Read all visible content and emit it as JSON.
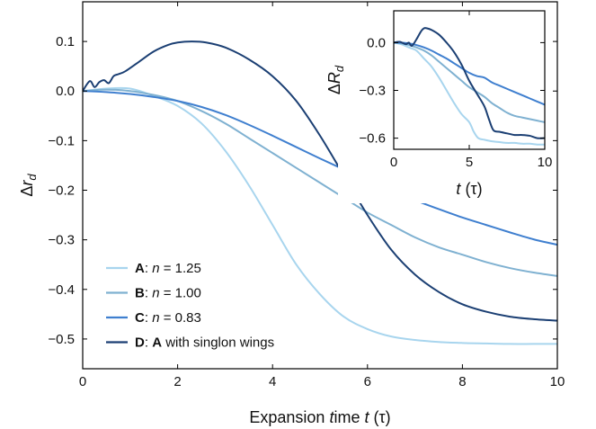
{
  "chart_data": [
    {
      "type": "line",
      "xlabel": "Expansion time t (τ)",
      "ylabel": "Δr_d",
      "xlim": [
        0,
        10
      ],
      "ylim": [
        -0.56,
        0.18
      ],
      "xticks": [
        0,
        2,
        4,
        6,
        8,
        10
      ],
      "yticks": [
        0.1,
        0.0,
        -0.1,
        -0.2,
        -0.3,
        -0.4,
        -0.5
      ],
      "xtick_labels": [
        "0",
        "2",
        "4",
        "6",
        "8",
        "10"
      ],
      "ytick_labels": [
        "0.1",
        "0.0",
        "−0.1",
        "−0.2",
        "−0.3",
        "−0.4",
        "−0.5"
      ],
      "grid": false,
      "legend_position": "bottom-left",
      "series": [
        {
          "name": "A: n = 1.25",
          "legend_bold": "A",
          "legend_rest": ": n = 1.25",
          "color": "#a8d5ee",
          "x": [
            0,
            0.5,
            1,
            1.5,
            2,
            2.5,
            3,
            3.5,
            4,
            4.5,
            5,
            5.5,
            6,
            6.5,
            7,
            7.5,
            8,
            8.5,
            9,
            9.5,
            10
          ],
          "y": [
            0.0,
            0.005,
            0.005,
            -0.01,
            -0.03,
            -0.065,
            -0.12,
            -0.19,
            -0.27,
            -0.35,
            -0.41,
            -0.455,
            -0.48,
            -0.495,
            -0.502,
            -0.506,
            -0.508,
            -0.509,
            -0.51,
            -0.51,
            -0.51
          ]
        },
        {
          "name": "B: n = 1.00",
          "legend_bold": "B",
          "legend_rest": ": n = 1.00",
          "color": "#7fb1d1",
          "x": [
            0,
            0.5,
            1,
            1.5,
            2,
            2.5,
            3,
            3.5,
            4,
            4.5,
            5,
            5.5,
            6,
            6.5,
            7,
            7.5,
            8,
            8.5,
            9,
            9.5,
            10
          ],
          "y": [
            0.0,
            0.003,
            0.0,
            -0.008,
            -0.02,
            -0.04,
            -0.065,
            -0.095,
            -0.125,
            -0.155,
            -0.185,
            -0.215,
            -0.245,
            -0.27,
            -0.295,
            -0.315,
            -0.33,
            -0.345,
            -0.357,
            -0.366,
            -0.373
          ]
        },
        {
          "name": "C: n = 0.83",
          "legend_bold": "C",
          "legend_rest": ": n = 0.83",
          "color": "#3f7fcf",
          "x": [
            0,
            0.5,
            1,
            1.5,
            2,
            2.5,
            3,
            3.5,
            4,
            4.5,
            5,
            5.5,
            6,
            6.5,
            7,
            7.5,
            8,
            8.5,
            9,
            9.5,
            10
          ],
          "y": [
            0.0,
            -0.002,
            -0.006,
            -0.012,
            -0.02,
            -0.032,
            -0.048,
            -0.068,
            -0.09,
            -0.113,
            -0.136,
            -0.158,
            -0.18,
            -0.2,
            -0.22,
            -0.238,
            -0.255,
            -0.27,
            -0.285,
            -0.299,
            -0.31
          ]
        },
        {
          "name": "D: A with singlon wings",
          "legend_bold": "D",
          "legend_mid": ": ",
          "legend_bold2": "A",
          "legend_rest": " with singlon wings",
          "color": "#1b3f73",
          "x": [
            0,
            0.15,
            0.25,
            0.35,
            0.45,
            0.55,
            0.65,
            0.75,
            0.9,
            1.2,
            1.5,
            1.8,
            2.0,
            2.3,
            2.6,
            3.0,
            3.5,
            4.0,
            4.5,
            5.0,
            5.5,
            6.0,
            6.5,
            7.0,
            7.5,
            8.0,
            8.5,
            9.0,
            9.5,
            10
          ],
          "y": [
            0.0,
            0.02,
            0.008,
            0.018,
            0.022,
            0.016,
            0.03,
            0.034,
            0.04,
            0.06,
            0.08,
            0.093,
            0.098,
            0.1,
            0.098,
            0.088,
            0.064,
            0.03,
            -0.02,
            -0.09,
            -0.17,
            -0.25,
            -0.32,
            -0.37,
            -0.405,
            -0.43,
            -0.445,
            -0.455,
            -0.46,
            -0.463
          ]
        }
      ]
    },
    {
      "type": "line",
      "xlabel": "t (τ)",
      "ylabel": "ΔR_d",
      "xlim": [
        0,
        10
      ],
      "ylim": [
        -0.67,
        0.2
      ],
      "xticks": [
        0,
        5,
        10
      ],
      "yticks": [
        0.0,
        -0.3,
        -0.6
      ],
      "xtick_labels": [
        "0",
        "5",
        "10"
      ],
      "ytick_labels": [
        "0.0",
        "−0.3",
        "−0.6"
      ],
      "grid": false,
      "series": [
        {
          "color": "#a8d5ee",
          "x": [
            0,
            0.5,
            1,
            1.5,
            2,
            2.5,
            3,
            3.5,
            4,
            4.5,
            5,
            5.3,
            5.6,
            6,
            6.5,
            7,
            7.5,
            8,
            8.5,
            9,
            9.5,
            10
          ],
          "y": [
            0.0,
            -0.01,
            -0.03,
            -0.05,
            -0.1,
            -0.15,
            -0.22,
            -0.3,
            -0.38,
            -0.45,
            -0.5,
            -0.56,
            -0.6,
            -0.61,
            -0.62,
            -0.625,
            -0.63,
            -0.63,
            -0.635,
            -0.635,
            -0.64,
            -0.64
          ]
        },
        {
          "color": "#7fb1d1",
          "x": [
            0,
            0.5,
            1,
            1.5,
            2,
            2.5,
            3,
            3.5,
            4,
            4.5,
            5,
            5.5,
            6,
            6.5,
            7,
            7.5,
            8,
            8.5,
            9,
            9.5,
            10
          ],
          "y": [
            0.0,
            -0.005,
            -0.015,
            -0.03,
            -0.05,
            -0.08,
            -0.12,
            -0.16,
            -0.2,
            -0.24,
            -0.28,
            -0.31,
            -0.34,
            -0.38,
            -0.41,
            -0.44,
            -0.46,
            -0.47,
            -0.48,
            -0.49,
            -0.5
          ]
        },
        {
          "color": "#3f7fcf",
          "x": [
            0,
            0.5,
            1,
            1.5,
            2,
            2.5,
            3,
            3.5,
            4,
            4.5,
            5,
            5.5,
            6,
            6.5,
            7,
            7.5,
            8,
            8.5,
            9,
            9.5,
            10
          ],
          "y": [
            0.0,
            0.0,
            -0.005,
            -0.015,
            -0.03,
            -0.05,
            -0.075,
            -0.1,
            -0.13,
            -0.16,
            -0.19,
            -0.21,
            -0.22,
            -0.25,
            -0.27,
            -0.29,
            -0.31,
            -0.33,
            -0.35,
            -0.37,
            -0.39
          ]
        },
        {
          "color": "#1b3f73",
          "x": [
            0,
            0.4,
            0.8,
            1.0,
            1.2,
            1.5,
            1.8,
            2.0,
            2.2,
            2.5,
            3.0,
            3.5,
            4.0,
            4.5,
            5.0,
            5.5,
            6.0,
            6.3,
            6.6,
            7.0,
            7.5,
            8.0,
            8.5,
            9.0,
            9.5,
            10
          ],
          "y": [
            0.0,
            0.005,
            -0.01,
            0.0,
            -0.02,
            0.02,
            0.07,
            0.09,
            0.09,
            0.08,
            0.05,
            0.0,
            -0.06,
            -0.14,
            -0.24,
            -0.32,
            -0.4,
            -0.48,
            -0.55,
            -0.56,
            -0.57,
            -0.58,
            -0.58,
            -0.585,
            -0.6,
            -0.6
          ]
        }
      ]
    }
  ]
}
